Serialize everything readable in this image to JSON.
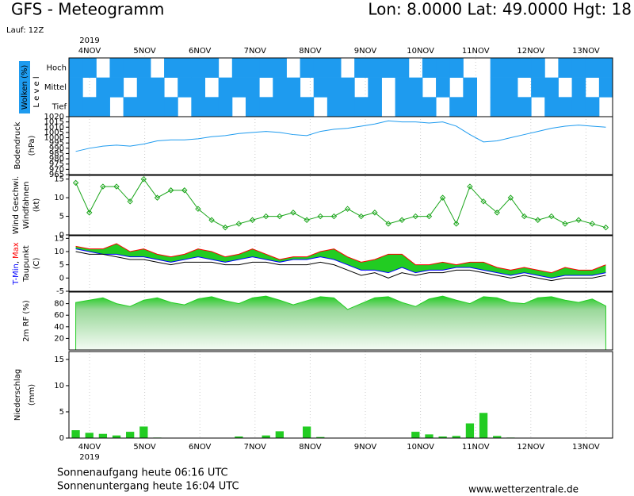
{
  "header": {
    "title": "GFS - Meteogramm",
    "location": "Lon: 8.0000  Lat: 49.0000  Hgt: 18",
    "run": "Lauf: 12Z"
  },
  "time_axis": {
    "year": "2019",
    "dates": [
      "4NOV",
      "5NOV",
      "6NOV",
      "7NOV",
      "8NOV",
      "9NOV",
      "10NOV",
      "11NOV",
      "12NOV",
      "13NOV"
    ]
  },
  "chart_data": [
    {
      "type": "heatmap",
      "ylabel": "Wolken (%)",
      "level_label": "L e v e l",
      "color": "#1e9bef",
      "series": [
        {
          "name": "Hoch",
          "values": [
            100,
            100,
            0,
            100,
            100,
            100,
            0,
            100,
            100,
            100,
            100,
            0,
            100,
            100,
            100,
            100,
            0,
            100,
            100,
            100,
            0,
            100,
            100,
            100,
            100,
            0,
            100,
            100,
            100,
            0,
            0,
            100,
            100,
            100,
            100,
            0,
            100,
            100,
            100,
            100
          ]
        },
        {
          "name": "Mittel",
          "values": [
            100,
            0,
            100,
            100,
            0,
            100,
            100,
            0,
            100,
            100,
            0,
            100,
            100,
            100,
            0,
            100,
            100,
            0,
            100,
            100,
            100,
            0,
            100,
            0,
            100,
            100,
            0,
            100,
            0,
            100,
            0,
            100,
            100,
            0,
            100,
            100,
            0,
            100,
            0,
            100
          ]
        },
        {
          "name": "Tief",
          "values": [
            100,
            100,
            100,
            0,
            100,
            100,
            100,
            100,
            0,
            100,
            100,
            100,
            0,
            100,
            100,
            100,
            100,
            100,
            0,
            100,
            100,
            100,
            100,
            0,
            100,
            100,
            100,
            0,
            100,
            100,
            0,
            100,
            100,
            100,
            0,
            100,
            100,
            100,
            100,
            0
          ]
        }
      ]
    },
    {
      "type": "line",
      "ylabel": "Bodendruck",
      "unit": "(hPa)",
      "ylim": [
        965,
        1020
      ],
      "yticks": [
        965,
        970,
        975,
        980,
        985,
        990,
        995,
        1000,
        1005,
        1010,
        1015,
        1020
      ],
      "series": [
        {
          "name": "Bodendruck",
          "color": "#1e9bef",
          "values": [
            987,
            990,
            992,
            993,
            992,
            994,
            997,
            998,
            998,
            999,
            1001,
            1002,
            1004,
            1005,
            1006,
            1005,
            1003,
            1002,
            1006,
            1008,
            1009,
            1011,
            1013,
            1016,
            1015,
            1015,
            1014,
            1015,
            1011,
            1003,
            996,
            997,
            1000,
            1003,
            1006,
            1009,
            1011,
            1012,
            1011,
            1010
          ]
        }
      ]
    },
    {
      "type": "line",
      "ylabel": "Windfahnen",
      "unit": "(kt)",
      "ylim": [
        0,
        16
      ],
      "yticks": [
        0,
        5,
        10,
        15
      ],
      "marker": "diamond",
      "series": [
        {
          "name": "Wind Geschwi.",
          "color": "#1aa51a",
          "values": [
            14,
            6,
            13,
            13,
            9,
            15,
            10,
            12,
            12,
            7,
            4,
            2,
            3,
            4,
            5,
            5,
            6,
            4,
            5,
            5,
            7,
            5,
            6,
            3,
            4,
            5,
            5,
            10,
            3,
            13,
            9,
            6,
            10,
            5,
            4,
            5,
            3,
            4,
            3,
            2
          ]
        }
      ]
    },
    {
      "type": "band",
      "unit": "(C)",
      "separator": ",",
      "ylim": [
        -5,
        16
      ],
      "yticks": [
        -5,
        0,
        5,
        10,
        15
      ],
      "fill": "#22cc22",
      "series": [
        {
          "name": "T-Min",
          "color": "#0000ff",
          "values": [
            11,
            10,
            9,
            9,
            8,
            8,
            7,
            6,
            7,
            8,
            7,
            6,
            7,
            8,
            7,
            6,
            7,
            7,
            8,
            7,
            5,
            3,
            3,
            2,
            4,
            2,
            3,
            3,
            4,
            4,
            3,
            2,
            1,
            2,
            1,
            0,
            1,
            1,
            1,
            2
          ]
        },
        {
          "name": "Max",
          "color": "#ff0000",
          "values": [
            12,
            11,
            11,
            13,
            10,
            11,
            9,
            8,
            9,
            11,
            10,
            8,
            9,
            11,
            9,
            7,
            8,
            8,
            10,
            11,
            8,
            6,
            7,
            9,
            9,
            5,
            5,
            6,
            5,
            6,
            6,
            4,
            3,
            4,
            3,
            2,
            4,
            3,
            3,
            5
          ]
        },
        {
          "name": "Taupunkt",
          "color": "#000000",
          "values": [
            10,
            9,
            9,
            8,
            7,
            7,
            6,
            5,
            6,
            6,
            6,
            5,
            5,
            6,
            6,
            5,
            5,
            5,
            6,
            5,
            3,
            1,
            2,
            0,
            2,
            1,
            2,
            2,
            3,
            3,
            2,
            1,
            0,
            1,
            0,
            -1,
            0,
            0,
            0,
            1
          ]
        }
      ]
    },
    {
      "type": "area",
      "ylabel": "2m RF (%)",
      "ylim": [
        0,
        100
      ],
      "yticks": [
        20,
        40,
        60,
        80
      ],
      "series": [
        {
          "name": "2m RF (%)",
          "color": "#22cc22",
          "values": [
            82,
            86,
            90,
            80,
            75,
            86,
            90,
            82,
            78,
            88,
            92,
            85,
            80,
            90,
            93,
            86,
            78,
            85,
            92,
            90,
            70,
            80,
            90,
            92,
            82,
            75,
            88,
            93,
            86,
            80,
            92,
            90,
            82,
            80,
            90,
            92,
            86,
            82,
            88,
            76
          ]
        }
      ]
    },
    {
      "type": "bar",
      "ylabel": "Niederschlag",
      "unit": "(mm)",
      "ylim": [
        0,
        16.5
      ],
      "yticks": [
        0,
        5,
        10,
        15
      ],
      "series": [
        {
          "name": "Niederschlag",
          "color": "#22cc22",
          "values": [
            1.5,
            1.0,
            0.8,
            0.5,
            1.2,
            2.2,
            0.1,
            0,
            0,
            0,
            0,
            0,
            0.3,
            0,
            0.5,
            1.3,
            0,
            2.2,
            0.2,
            0,
            0,
            0,
            0,
            0,
            0,
            1.2,
            0.7,
            0.3,
            0.4,
            2.8,
            4.8,
            0.4,
            0.1,
            0,
            0,
            0,
            0,
            0,
            0,
            0
          ]
        }
      ]
    }
  ],
  "footer": {
    "sunrise": "Sonnenaufgang heute 06:16 UTC",
    "sunset": "Sonnenuntergang heute 16:04 UTC",
    "source": "www.wetterzentrale.de"
  }
}
